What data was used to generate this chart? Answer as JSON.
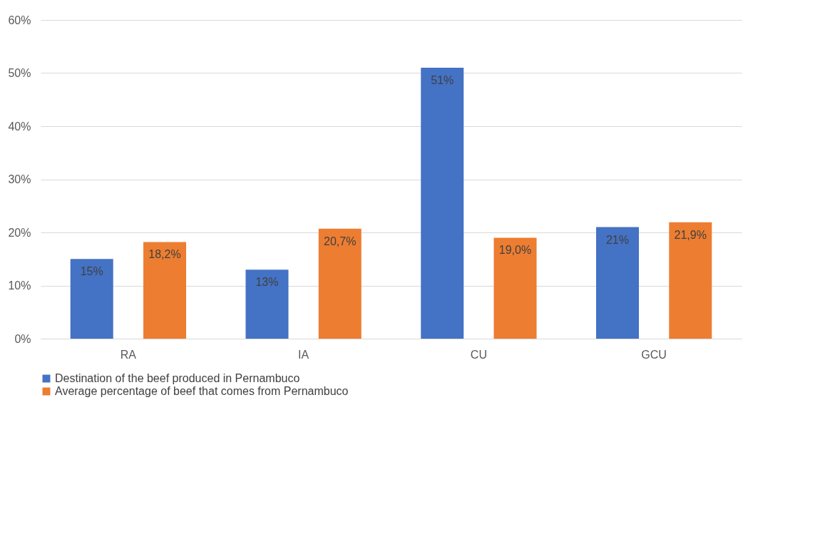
{
  "chart_data": {
    "type": "bar",
    "categories": [
      "RA",
      "IA",
      "CU",
      "GCU"
    ],
    "series": [
      {
        "name": "Destination of the beef produced in Pernambuco",
        "color": "#4472c4",
        "values": [
          15,
          13,
          51,
          21
        ],
        "value_labels": [
          "15%",
          "13%",
          "51%",
          "21%"
        ]
      },
      {
        "name": "Average percentage of beef that comes from Pernambuco",
        "color": "#ed7d31",
        "values": [
          18.2,
          20.7,
          19.0,
          21.9
        ],
        "value_labels": [
          "18,2%",
          "20,7%",
          "19,0%",
          "21,9%"
        ]
      }
    ],
    "ylim": [
      0,
      60
    ],
    "yticks": [
      {
        "value": 0,
        "label": "0%"
      },
      {
        "value": 10,
        "label": "10%"
      },
      {
        "value": 20,
        "label": "20%"
      },
      {
        "value": 30,
        "label": "30%"
      },
      {
        "value": 40,
        "label": "40%"
      },
      {
        "value": 50,
        "label": "50%"
      },
      {
        "value": 60,
        "label": "60%"
      }
    ],
    "grid": "y",
    "legend": "bottom"
  }
}
